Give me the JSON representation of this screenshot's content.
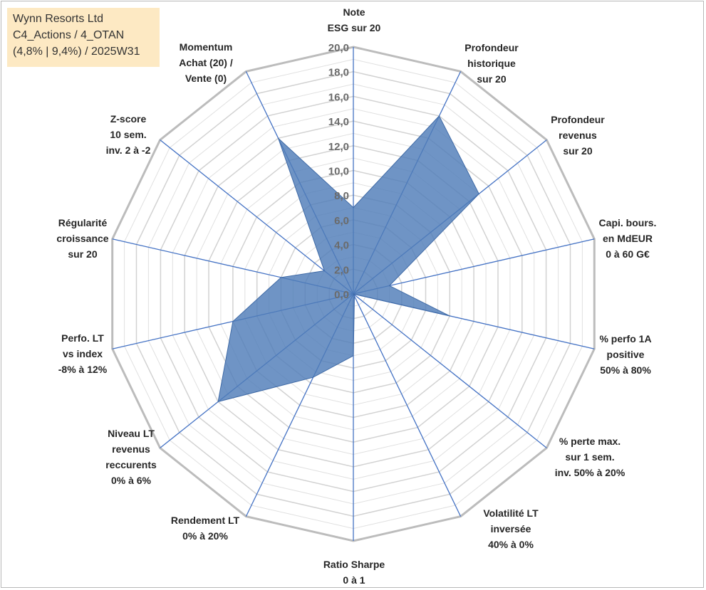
{
  "info_box": {
    "line1": "Wynn Resorts Ltd",
    "line2": "C4_Actions / 4_OTAN",
    "line3": "(4,8% | 9,4%) / 2025W31"
  },
  "chart_data": {
    "type": "radar",
    "title": "",
    "rlim": [
      0,
      20
    ],
    "tick_step": 2,
    "ticks": [
      "0,0",
      "2,0",
      "4,0",
      "6,0",
      "8,0",
      "10,0",
      "12,0",
      "14,0",
      "16,0",
      "18,0",
      "20,0"
    ],
    "grid": true,
    "axes": [
      {
        "label": [
          "Note",
          "ESG sur 20"
        ]
      },
      {
        "label": [
          "Profondeur",
          "historique",
          "sur 20"
        ]
      },
      {
        "label": [
          "Profondeur",
          "revenus",
          "sur 20"
        ]
      },
      {
        "label": [
          "Capi. bours.",
          "en MdEUR",
          "0 à 60 G€"
        ]
      },
      {
        "label": [
          "% perfo 1A",
          "positive",
          "50% à 80%"
        ]
      },
      {
        "label": [
          "% perte max.",
          "sur 1 sem.",
          "inv. 50% à 20%"
        ]
      },
      {
        "label": [
          "Volatilité LT",
          "inversée",
          "40% à 0%"
        ]
      },
      {
        "label": [
          "Ratio Sharpe",
          "0 à 1"
        ]
      },
      {
        "label": [
          "Rendement LT",
          "0% à 20%"
        ]
      },
      {
        "label": [
          "Niveau LT",
          "revenus",
          "reccurents",
          "0% à 6%"
        ]
      },
      {
        "label": [
          "Perfo. LT",
          "vs index",
          "-8% à 12%"
        ]
      },
      {
        "label": [
          "Régularité",
          "croissance",
          "sur 20"
        ]
      },
      {
        "label": [
          "Z-score",
          "10 sem.",
          "inv. 2 à -2"
        ]
      },
      {
        "label": [
          "Momentum",
          "Achat (20) /",
          "Vente (0)"
        ]
      }
    ],
    "series": [
      {
        "values": [
          7.0,
          16.0,
          13.0,
          3.0,
          8.0,
          0.0,
          0.2,
          5.0,
          7.5,
          14.0,
          10.0,
          6.0,
          3.0,
          14.0
        ],
        "color": "#4f7cb8"
      }
    ]
  }
}
